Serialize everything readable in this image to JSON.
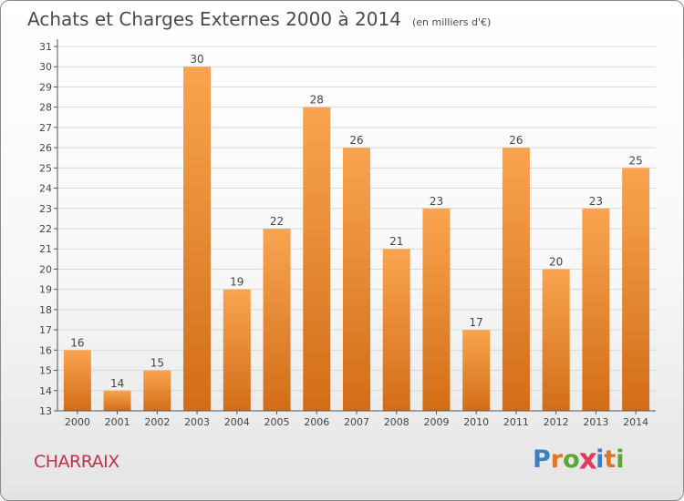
{
  "title": "Achats et Charges Externes 2000 à 2014",
  "unit": "(en milliers d'€)",
  "commune": "CHARRAIX",
  "logo": {
    "text": "Proxiti",
    "letter_colors": [
      "#3b7fc4",
      "#e0762a",
      "#5aa832",
      "#e23a5a",
      "#3b7fc4",
      "#e0762a",
      "#5aa832"
    ]
  },
  "colors": {
    "bar_light": "#f9a450",
    "bar_dark": "#d26d16",
    "grid": "#d9d9d9",
    "axis": "#555555"
  },
  "chart_data": {
    "type": "bar",
    "categories": [
      "2000",
      "2001",
      "2002",
      "2003",
      "2004",
      "2005",
      "2006",
      "2007",
      "2008",
      "2009",
      "2010",
      "2011",
      "2012",
      "2013",
      "2014"
    ],
    "values": [
      16,
      14,
      15,
      30,
      19,
      22,
      28,
      26,
      21,
      23,
      17,
      26,
      20,
      23,
      25
    ],
    "data_labels": [
      "16",
      "14",
      "15",
      "30",
      "19",
      "22",
      "28",
      "26",
      "21",
      "23",
      "17",
      "26",
      "20",
      "23",
      "25"
    ],
    "ylim": [
      13,
      31
    ],
    "yticks": [
      "13",
      "14",
      "15",
      "16",
      "17",
      "18",
      "19",
      "20",
      "21",
      "22",
      "23",
      "24",
      "25",
      "26",
      "27",
      "28",
      "29",
      "30",
      "31"
    ],
    "grid": true,
    "legend": "none"
  }
}
